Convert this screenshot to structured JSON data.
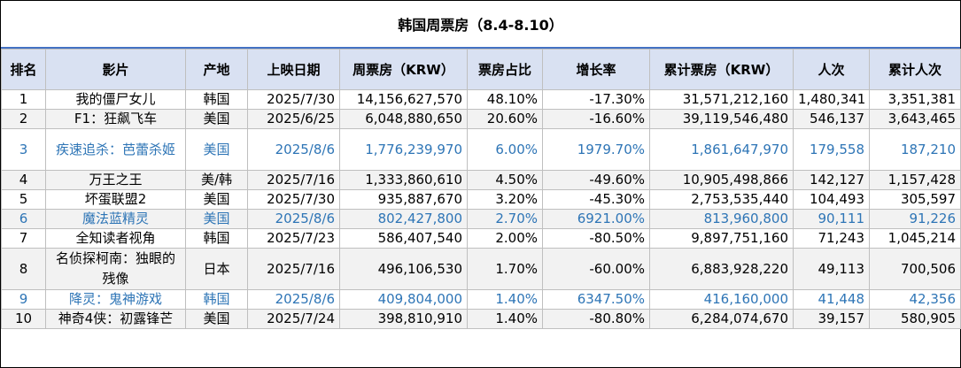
{
  "title": "韩国周票房（8.4-8.10）",
  "headers": [
    "排名",
    "影片",
    "产地",
    "上映日期",
    "周票房（KRW）",
    "票房占比",
    "增长率",
    "累计票房（KRW）",
    "人次",
    "累计人次"
  ],
  "rows": [
    {
      "rank": "1",
      "film": "我的僵尸女儿",
      "origin": "韩国",
      "date": "2025/7/30",
      "weekly": "14,156,627,570",
      "share": "48.10%",
      "growth": "-17.30%",
      "total": "31,571,212,160",
      "admissions": "1,480,341",
      "total_admissions": "3,351,381"
    },
    {
      "rank": "2",
      "film": "F1：狂飙飞车",
      "origin": "美国",
      "date": "2025/6/25",
      "weekly": "6,048,880,650",
      "share": "20.60%",
      "growth": "-16.60%",
      "total": "39,119,546,480",
      "admissions": "546,137",
      "total_admissions": "3,643,465"
    },
    {
      "rank": "3",
      "film": "疾速追杀：芭蕾杀姬",
      "origin": "美国",
      "date": "2025/8/6",
      "weekly": "1,776,239,970",
      "share": "6.00%",
      "growth": "1979.70%",
      "total": "1,861,647,970",
      "admissions": "179,558",
      "total_admissions": "187,210"
    },
    {
      "rank": "4",
      "film": "万王之王",
      "origin": "美/韩",
      "date": "2025/7/16",
      "weekly": "1,333,860,610",
      "share": "4.50%",
      "growth": "-49.60%",
      "total": "10,905,498,866",
      "admissions": "142,127",
      "total_admissions": "1,157,428"
    },
    {
      "rank": "5",
      "film": "坏蛋联盟2",
      "origin": "美国",
      "date": "2025/7/30",
      "weekly": "935,887,670",
      "share": "3.20%",
      "growth": "-45.30%",
      "total": "2,753,535,440",
      "admissions": "104,493",
      "total_admissions": "305,597"
    },
    {
      "rank": "6",
      "film": "魔法蓝精灵",
      "origin": "美国",
      "date": "2025/8/6",
      "weekly": "802,427,800",
      "share": "2.70%",
      "growth": "6921.00%",
      "total": "813,960,800",
      "admissions": "90,111",
      "total_admissions": "91,226"
    },
    {
      "rank": "7",
      "film": "全知读者视角",
      "origin": "韩国",
      "date": "2025/7/23",
      "weekly": "586,407,540",
      "share": "2.00%",
      "growth": "-80.50%",
      "total": "9,897,751,160",
      "admissions": "71,243",
      "total_admissions": "1,045,214"
    },
    {
      "rank": "8",
      "film": "名侦探柯南：独眼的残像",
      "origin": "日本",
      "date": "2025/7/16",
      "weekly": "496,106,530",
      "share": "1.70%",
      "growth": "-60.00%",
      "total": "6,883,928,220",
      "admissions": "49,113",
      "total_admissions": "700,506"
    },
    {
      "rank": "9",
      "film": "降灵：鬼神游戏",
      "origin": "韩国",
      "date": "2025/8/6",
      "weekly": "409,804,000",
      "share": "1.40%",
      "growth": "6347.50%",
      "total": "416,160,000",
      "admissions": "41,448",
      "total_admissions": "42,356"
    },
    {
      "rank": "10",
      "film": "神奇4侠：初露锋芒",
      "origin": "美国",
      "date": "2025/7/24",
      "weekly": "398,810,910",
      "share": "1.40%",
      "growth": "-80.80%",
      "total": "6,284,074,670",
      "admissions": "39,157",
      "total_admissions": "580,905"
    }
  ],
  "colors": {
    "header_bg": "#D9E1F2",
    "new_release_text": "#2E75B6",
    "title_underline": "#4472C4",
    "stripe": "#F2F2F2"
  }
}
